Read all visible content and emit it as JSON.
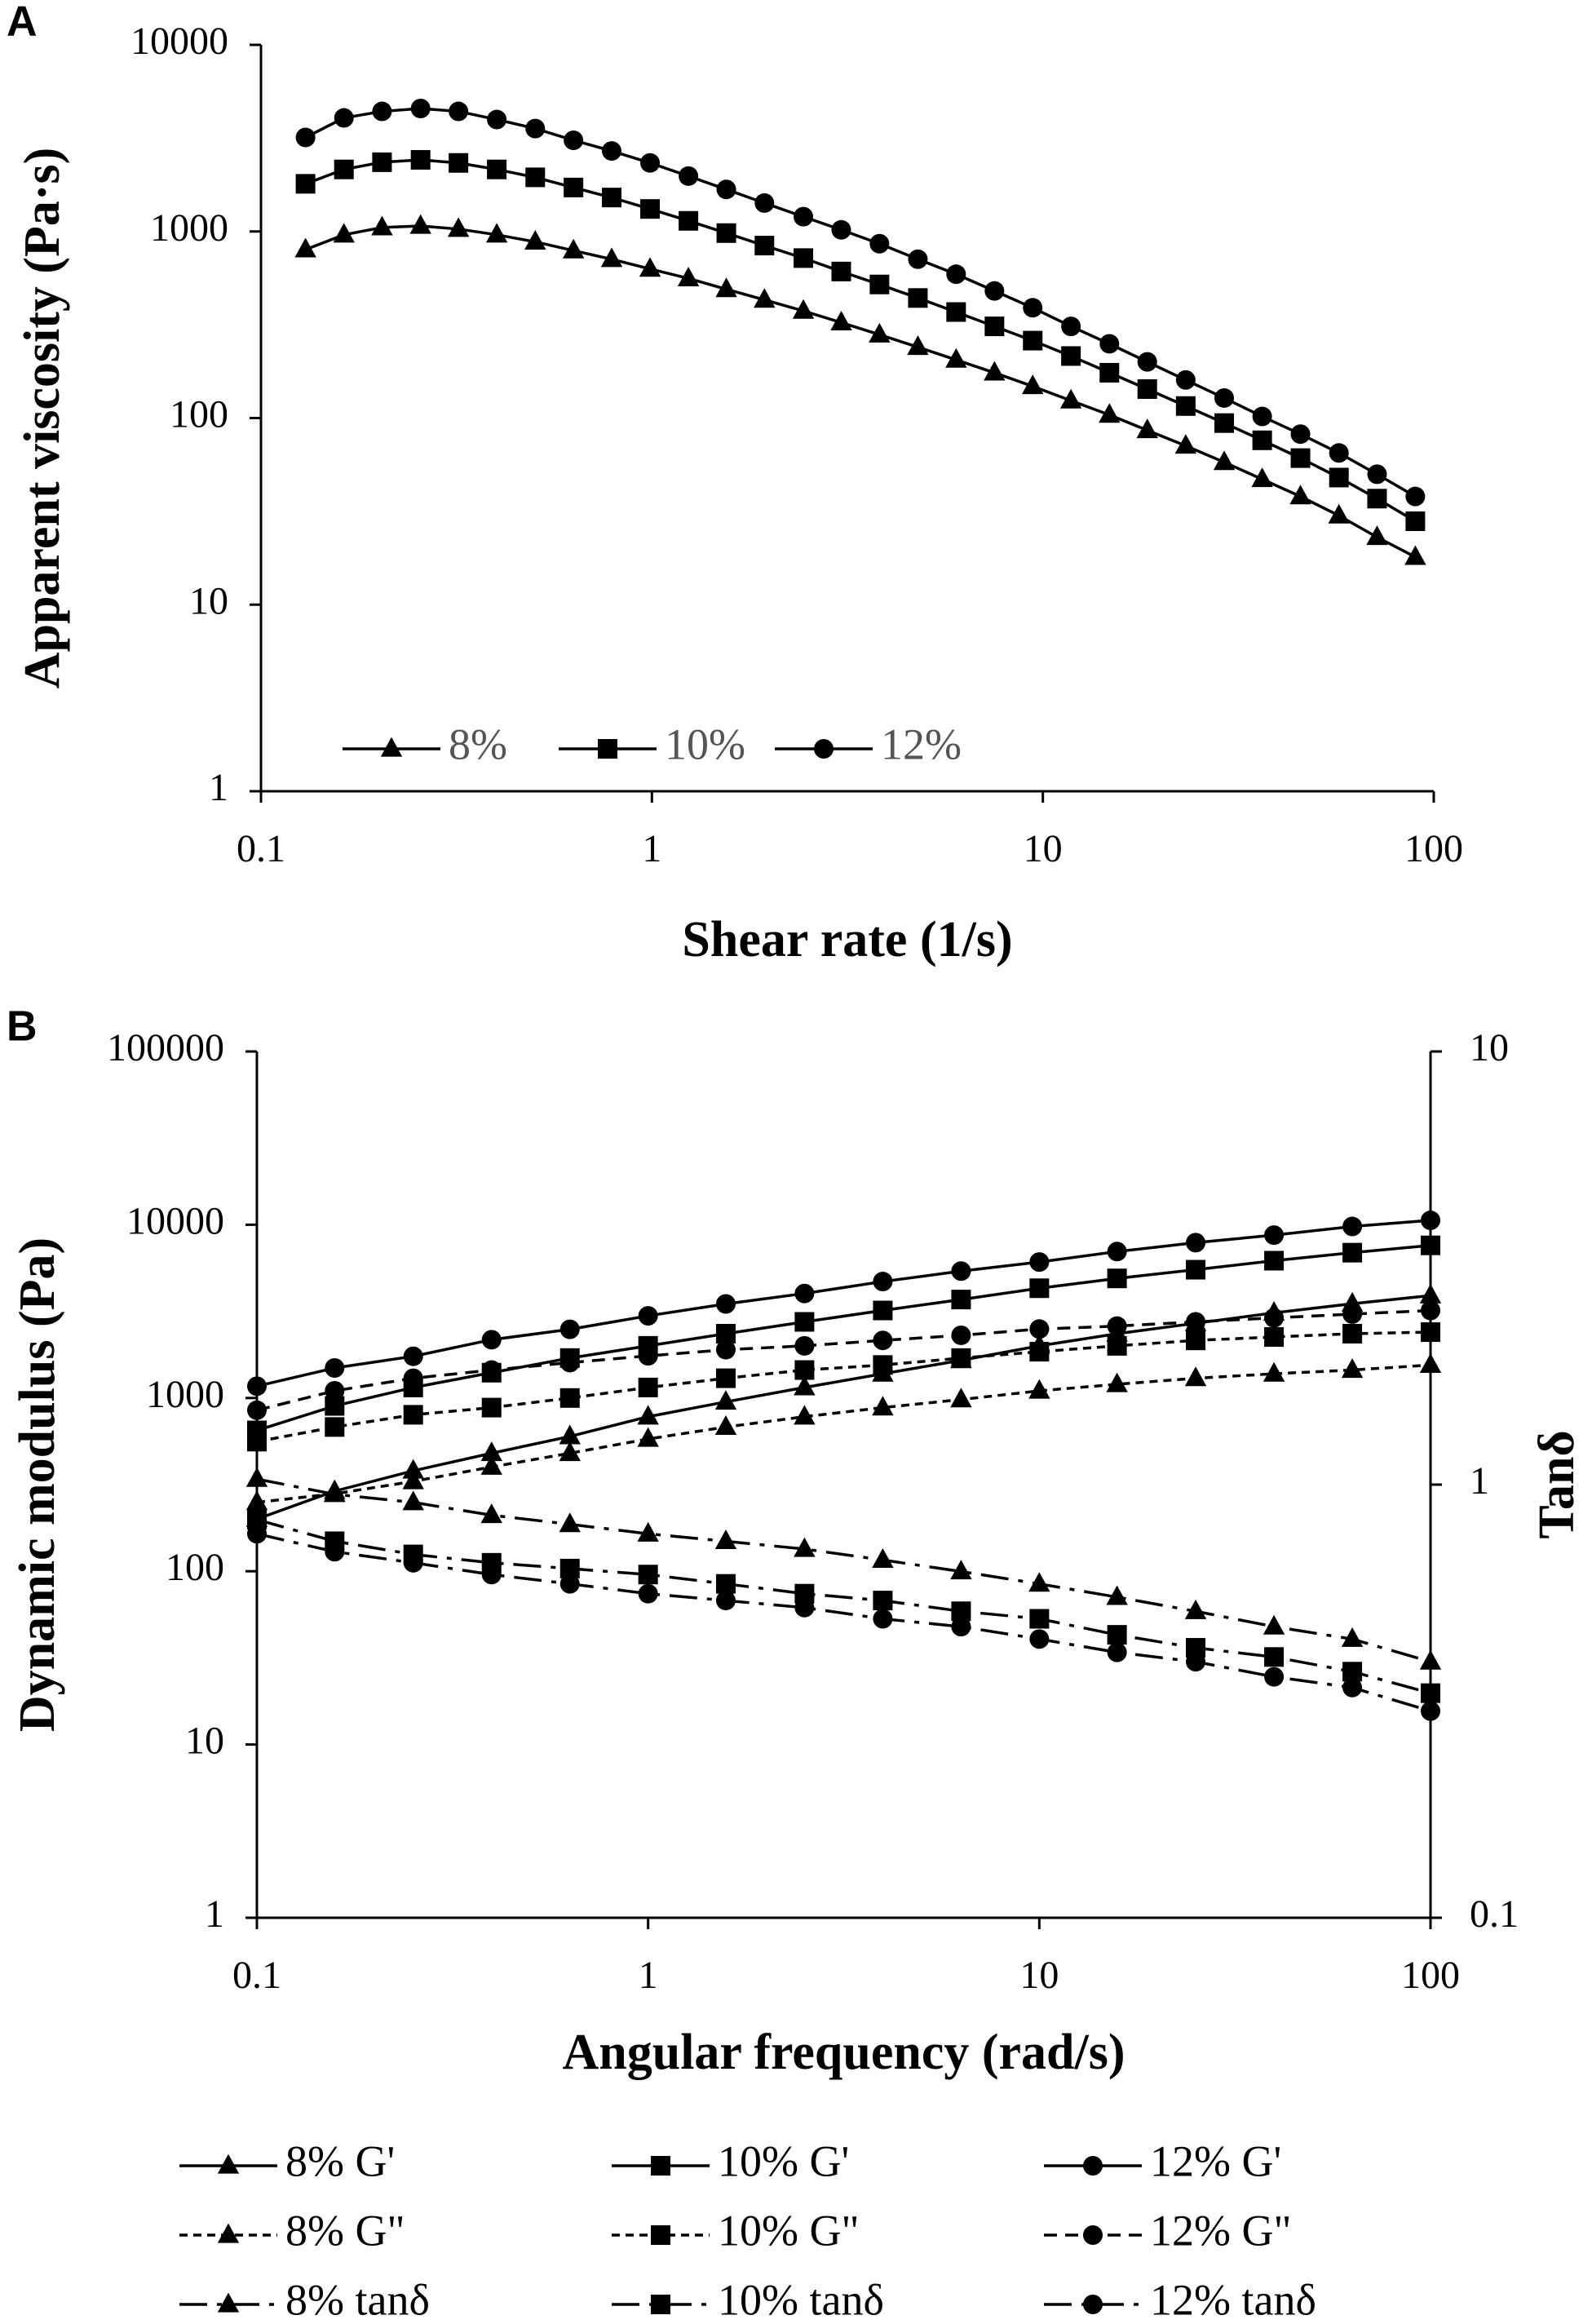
{
  "chart_data": [
    {
      "type": "line",
      "panel_label": "A",
      "xlabel": "Shear rate (1/s)",
      "ylabel": "Apparent viscosity (Pa·s)",
      "xscale": "log",
      "yscale": "log",
      "legend": "lower left",
      "xlim": [
        0.1,
        100
      ],
      "xticks": [
        0.1,
        1,
        10,
        100
      ],
      "ylim": [
        1,
        10000
      ],
      "yticks": [
        1,
        10,
        100,
        1000,
        10000
      ],
      "x": [
        0.13,
        0.163,
        0.204,
        0.256,
        0.32,
        0.401,
        0.503,
        0.63,
        0.789,
        0.989,
        1.24,
        1.55,
        1.94,
        2.44,
        3.05,
        3.82,
        4.79,
        6.0,
        7.52,
        9.42,
        11.8,
        14.8,
        18.5,
        23.2,
        29.1,
        36.4,
        45.6,
        57.2,
        71.6,
        89.7
      ],
      "series": [
        {
          "name": "8%",
          "color": "#000000",
          "marker": "triangle",
          "dash": "solid",
          "values": [
            800,
            960,
            1050,
            1070,
            1030,
            960,
            880,
            790,
            710,
            630,
            560,
            490,
            430,
            375,
            325,
            280,
            240,
            205,
            175,
            148,
            124,
            104,
            86,
            71,
            58,
            47,
            38,
            30,
            23,
            18
          ]
        },
        {
          "name": "10%",
          "color": "#000000",
          "marker": "square",
          "dash": "solid",
          "values": [
            1800,
            2150,
            2350,
            2420,
            2330,
            2150,
            1950,
            1720,
            1520,
            1320,
            1140,
            980,
            840,
            720,
            610,
            520,
            440,
            370,
            310,
            260,
            215,
            175,
            143,
            116,
            94,
            76,
            61,
            48,
            37,
            28
          ]
        },
        {
          "name": "12%",
          "color": "#000000",
          "marker": "circle",
          "dash": "solid",
          "values": [
            3190,
            4060,
            4400,
            4560,
            4400,
            3980,
            3560,
            3080,
            2700,
            2330,
            1980,
            1680,
            1420,
            1200,
            1020,
            860,
            710,
            590,
            480,
            390,
            310,
            250,
            200,
            160,
            128,
            102,
            82,
            65,
            50,
            38
          ]
        }
      ]
    },
    {
      "type": "line",
      "panel_label": "B",
      "xlabel": "Angular frequency (rad/s)",
      "ylabel": "Dynamic modulus (Pa)",
      "y2label": "Tanδ",
      "xscale": "log",
      "yscale": "log",
      "y2scale": "log",
      "legend": "below",
      "xlim": [
        0.1,
        100
      ],
      "xticks": [
        0.1,
        1,
        10,
        100
      ],
      "ylim": [
        1,
        100000
      ],
      "yticks": [
        1,
        10,
        100,
        1000,
        10000,
        100000
      ],
      "y2lim": [
        0.1,
        10
      ],
      "y2ticks": [
        0.1,
        1,
        10
      ],
      "x": [
        0.1,
        0.158,
        0.251,
        0.398,
        0.631,
        1,
        1.58,
        2.51,
        3.98,
        6.31,
        10,
        15.8,
        25.1,
        39.8,
        63.1,
        100
      ],
      "series": [
        {
          "name": "8% G'",
          "color": "#000000",
          "marker": "triangle",
          "dash": "solid",
          "values": [
            200,
            290,
            380,
            480,
            600,
            780,
            950,
            1150,
            1380,
            1650,
            2000,
            2350,
            2700,
            3100,
            3500,
            3900
          ]
        },
        {
          "name": "10% G'",
          "color": "#000000",
          "marker": "square",
          "dash": "solid",
          "values": [
            650,
            900,
            1150,
            1400,
            1700,
            2000,
            2350,
            2750,
            3200,
            3700,
            4300,
            4900,
            5500,
            6200,
            6900,
            7600
          ]
        },
        {
          "name": "12% G'",
          "color": "#000000",
          "marker": "circle",
          "dash": "solid",
          "values": [
            1170,
            1490,
            1740,
            2170,
            2490,
            2980,
            3490,
            4010,
            4700,
            5400,
            6090,
            7000,
            7880,
            8710,
            9770,
            10600
          ]
        },
        {
          "name": "8% G\"",
          "color": "#000000",
          "marker": "triangle",
          "dash": "short",
          "values": [
            250,
            280,
            330,
            400,
            480,
            580,
            680,
            780,
            880,
            980,
            1100,
            1200,
            1300,
            1380,
            1450,
            1550
          ]
        },
        {
          "name": "10% G\"",
          "color": "#000000",
          "marker": "square",
          "dash": "short",
          "values": [
            560,
            680,
            800,
            880,
            1000,
            1150,
            1300,
            1450,
            1550,
            1700,
            1850,
            2000,
            2150,
            2250,
            2350,
            2400
          ]
        },
        {
          "name": "12% G\"",
          "color": "#000000",
          "marker": "circle",
          "dash": "medium",
          "values": [
            850,
            1100,
            1300,
            1450,
            1600,
            1750,
            1900,
            2000,
            2150,
            2300,
            2500,
            2600,
            2750,
            2900,
            3050,
            3200
          ]
        },
        {
          "name": "8% tanδ",
          "color": "#000000",
          "marker": "triangle",
          "dash": "long",
          "axis": "y2",
          "values": [
            1.03,
            0.95,
            0.91,
            0.85,
            0.81,
            0.77,
            0.74,
            0.71,
            0.67,
            0.63,
            0.59,
            0.55,
            0.51,
            0.47,
            0.44,
            0.39
          ]
        },
        {
          "name": "10% tanδ",
          "color": "#000000",
          "marker": "square",
          "dash": "long",
          "axis": "y2",
          "values": [
            0.83,
            0.74,
            0.69,
            0.66,
            0.64,
            0.62,
            0.59,
            0.56,
            0.54,
            0.51,
            0.49,
            0.45,
            0.42,
            0.4,
            0.37,
            0.33
          ]
        },
        {
          "name": "12% tanδ",
          "color": "#000000",
          "marker": "circle",
          "dash": "long",
          "axis": "y2",
          "values": [
            0.77,
            0.7,
            0.66,
            0.62,
            0.59,
            0.56,
            0.54,
            0.52,
            0.49,
            0.47,
            0.44,
            0.41,
            0.39,
            0.36,
            0.34,
            0.3
          ]
        }
      ]
    }
  ]
}
